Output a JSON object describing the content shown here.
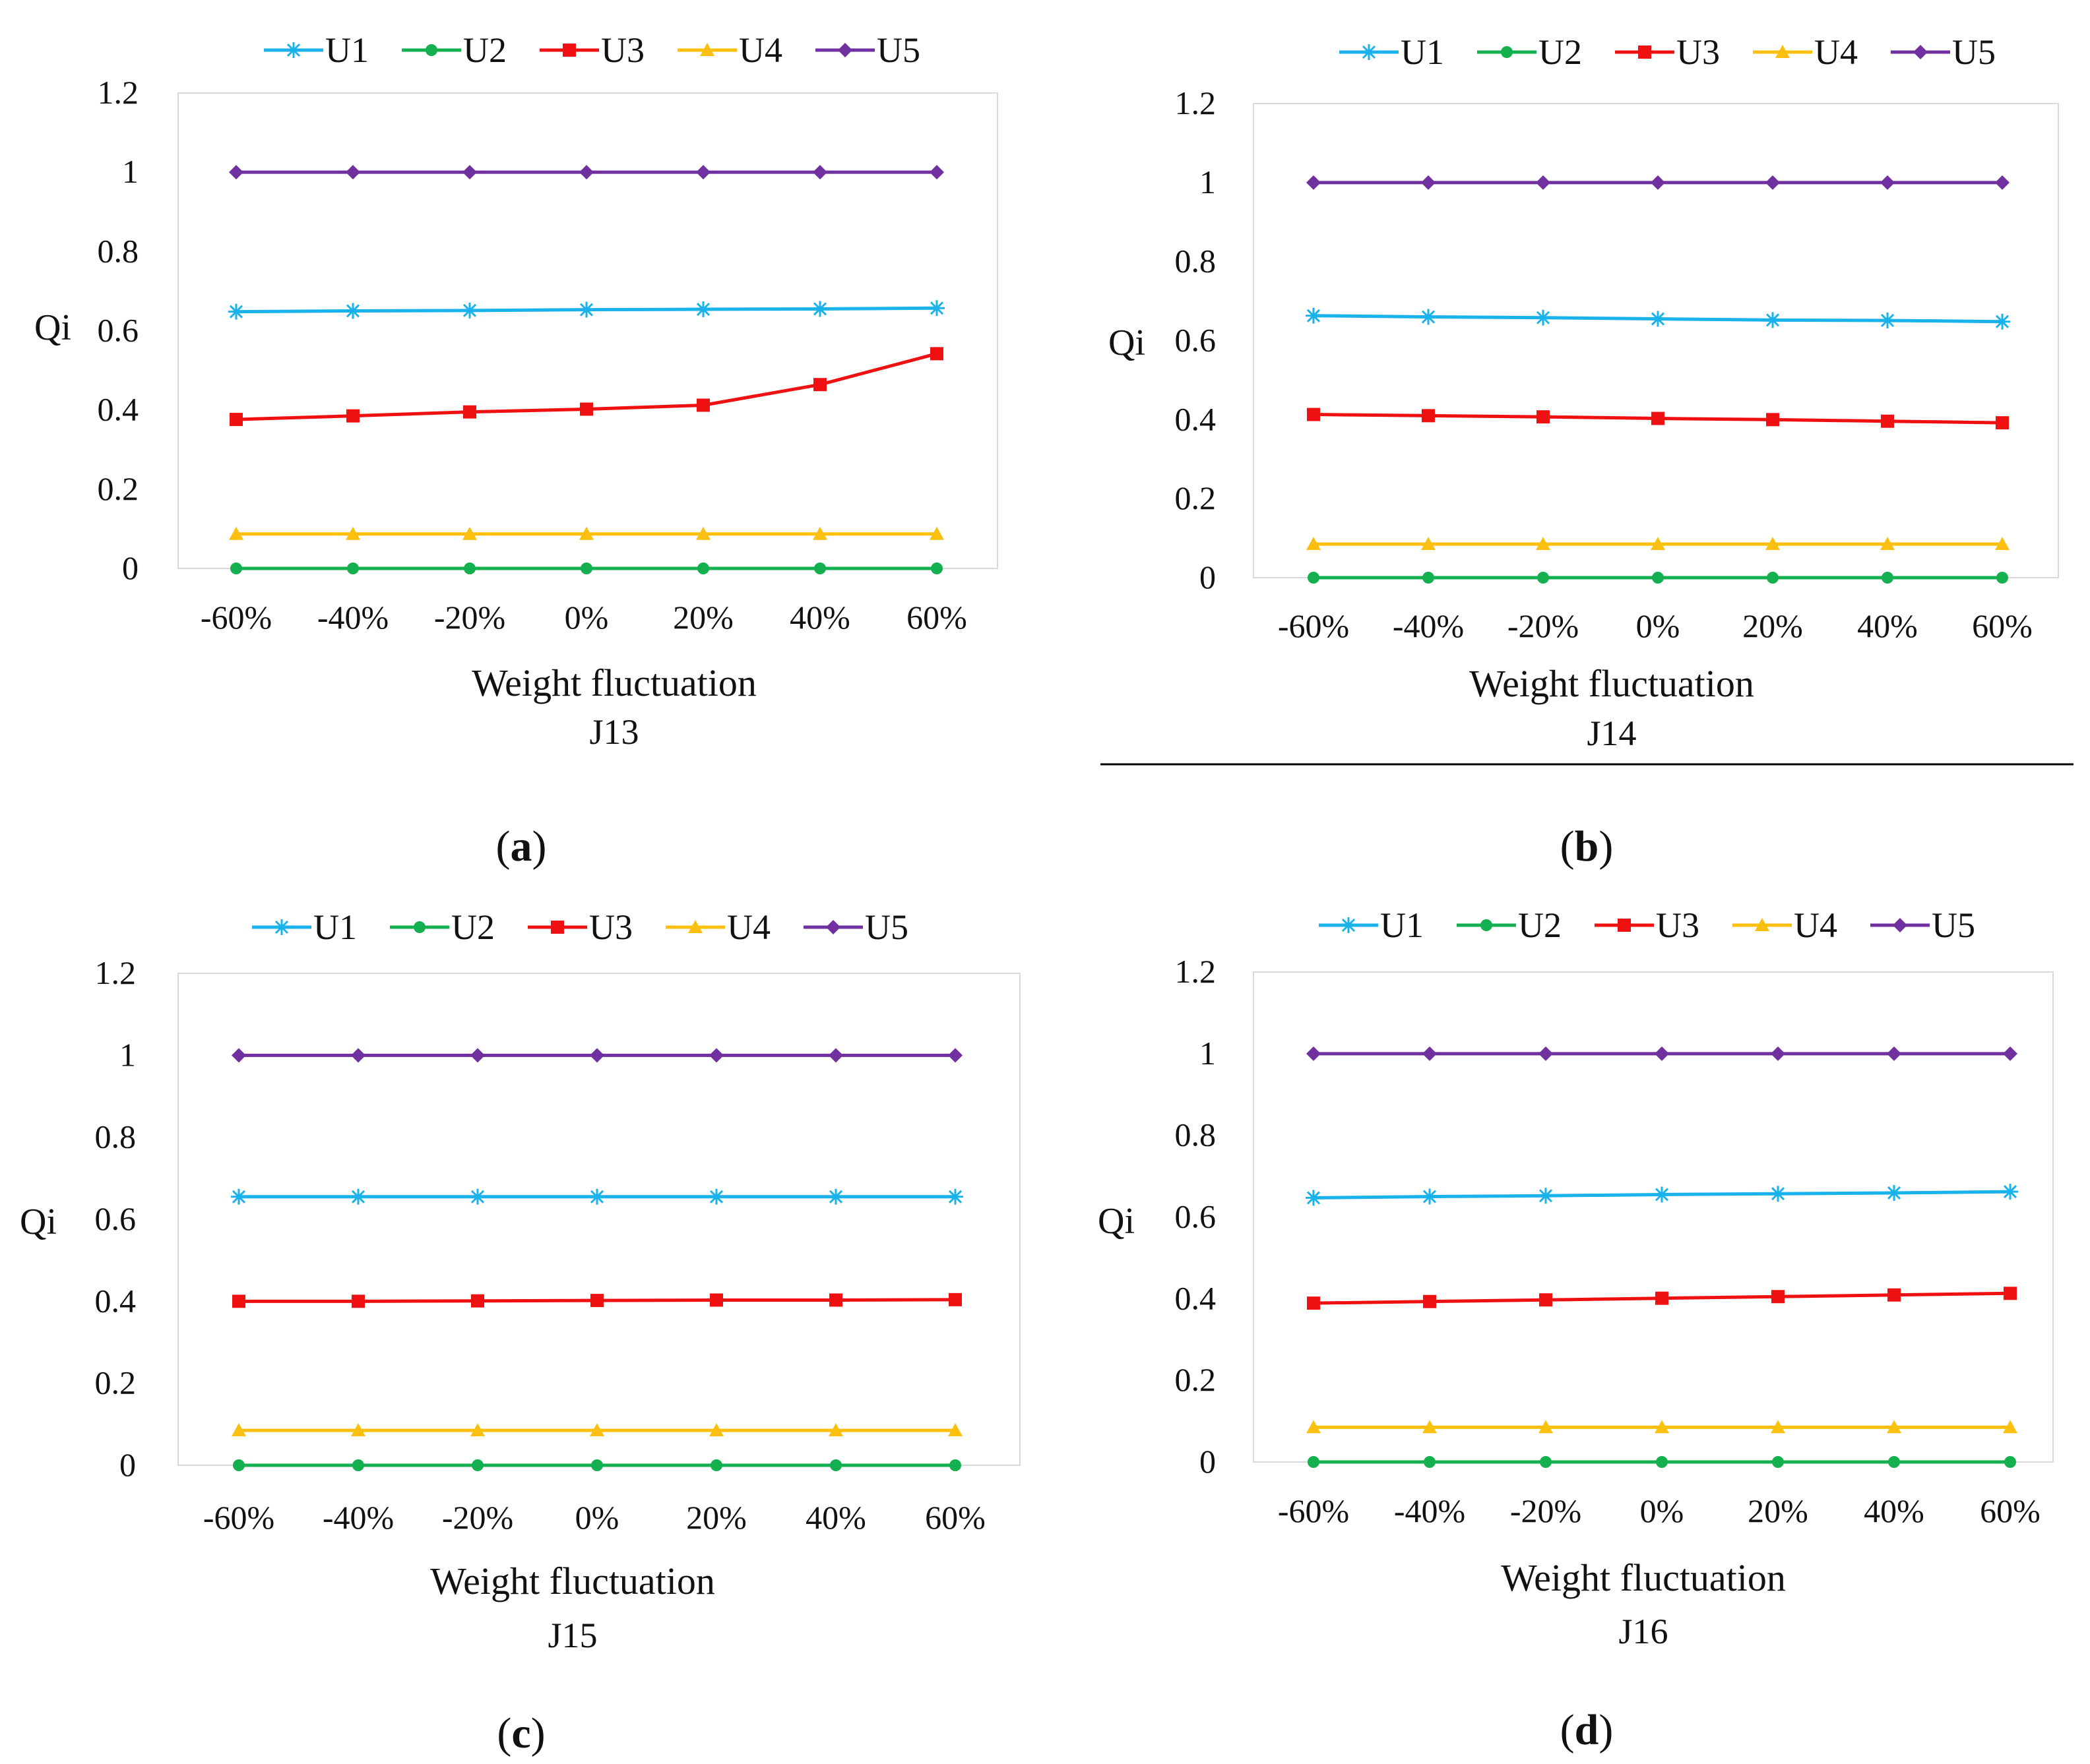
{
  "colors": {
    "U1": "#1ab2ea",
    "U2": "#14b050",
    "U3": "#ef1111",
    "U4": "#fbbf0f",
    "U5": "#7030a0",
    "frame": "#d9d9d9",
    "text": "#111111"
  },
  "legend_markers": {
    "U1": "asterisk",
    "U2": "circle",
    "U3": "square",
    "U4": "triangle",
    "U5": "diamond"
  },
  "chart_data": [
    {
      "type": "line",
      "panel": "(a)",
      "panel_letter": "a",
      "title": "J13",
      "xlabel": "Weight fluctuation",
      "ylabel": "Qi",
      "categories": [
        "-60%",
        "-40%",
        "-20%",
        "0%",
        "20%",
        "40%",
        "60%"
      ],
      "y_ticks": [
        "0",
        "0.2",
        "0.4",
        "0.6",
        "0.8",
        "1",
        "1.2"
      ],
      "ylim": [
        0,
        1.2
      ],
      "legend_position": "top",
      "series": [
        {
          "name": "U1",
          "values": [
            0.648,
            0.65,
            0.651,
            0.653,
            0.654,
            0.655,
            0.657
          ]
        },
        {
          "name": "U2",
          "values": [
            0,
            0,
            0,
            0,
            0,
            0,
            0
          ]
        },
        {
          "name": "U3",
          "values": [
            0.376,
            0.385,
            0.395,
            0.402,
            0.412,
            0.464,
            0.542
          ]
        },
        {
          "name": "U4",
          "values": [
            0.087,
            0.087,
            0.087,
            0.087,
            0.087,
            0.087,
            0.087
          ]
        },
        {
          "name": "U5",
          "values": [
            1,
            1,
            1,
            1,
            1,
            1,
            1
          ]
        }
      ]
    },
    {
      "type": "line",
      "panel": "(b)",
      "panel_letter": "b",
      "title": "J14",
      "xlabel": "Weight fluctuation",
      "ylabel": "Qi",
      "categories": [
        "-60%",
        "-40%",
        "-20%",
        "0%",
        "20%",
        "40%",
        "60%"
      ],
      "y_ticks": [
        "0",
        "0.2",
        "0.4",
        "0.6",
        "0.8",
        "1",
        "1.2"
      ],
      "ylim": [
        0,
        1.2
      ],
      "legend_position": "top",
      "series": [
        {
          "name": "U1",
          "values": [
            0.663,
            0.66,
            0.658,
            0.655,
            0.652,
            0.651,
            0.648
          ]
        },
        {
          "name": "U2",
          "values": [
            0,
            0,
            0,
            0,
            0,
            0,
            0
          ]
        },
        {
          "name": "U3",
          "values": [
            0.413,
            0.41,
            0.407,
            0.403,
            0.4,
            0.396,
            0.392
          ]
        },
        {
          "name": "U4",
          "values": [
            0.085,
            0.085,
            0.085,
            0.085,
            0.085,
            0.085,
            0.085
          ]
        },
        {
          "name": "U5",
          "values": [
            1,
            1,
            1,
            1,
            1,
            1,
            1
          ]
        }
      ]
    },
    {
      "type": "line",
      "panel": "(c)",
      "panel_letter": "c",
      "title": "J15",
      "xlabel": "Weight fluctuation",
      "ylabel": "Qi",
      "categories": [
        "-60%",
        "-40%",
        "-20%",
        "0%",
        "20%",
        "40%",
        "60%"
      ],
      "y_ticks": [
        "0",
        "0.2",
        "0.4",
        "0.6",
        "0.8",
        "1",
        "1.2"
      ],
      "ylim": [
        0,
        1.2
      ],
      "legend_position": "top",
      "series": [
        {
          "name": "U1",
          "values": [
            0.655,
            0.655,
            0.655,
            0.655,
            0.655,
            0.655,
            0.655
          ]
        },
        {
          "name": "U2",
          "values": [
            0,
            0,
            0,
            0,
            0,
            0,
            0
          ]
        },
        {
          "name": "U3",
          "values": [
            0.4,
            0.4,
            0.401,
            0.402,
            0.403,
            0.403,
            0.404
          ]
        },
        {
          "name": "U4",
          "values": [
            0.085,
            0.085,
            0.085,
            0.085,
            0.085,
            0.085,
            0.085
          ]
        },
        {
          "name": "U5",
          "values": [
            1,
            1,
            1,
            1,
            1,
            1,
            1
          ]
        }
      ]
    },
    {
      "type": "line",
      "panel": "(d)",
      "panel_letter": "d",
      "title": "J16",
      "xlabel": "Weight fluctuation",
      "ylabel": "Qi",
      "categories": [
        "-60%",
        "-40%",
        "-20%",
        "0%",
        "20%",
        "40%",
        "60%"
      ],
      "y_ticks": [
        "0",
        "0.2",
        "0.4",
        "0.6",
        "0.8",
        "1",
        "1.2"
      ],
      "ylim": [
        0,
        1.2
      ],
      "legend_position": "top",
      "series": [
        {
          "name": "U1",
          "values": [
            0.647,
            0.65,
            0.652,
            0.655,
            0.657,
            0.659,
            0.662
          ]
        },
        {
          "name": "U2",
          "values": [
            0,
            0,
            0,
            0,
            0,
            0,
            0
          ]
        },
        {
          "name": "U3",
          "values": [
            0.389,
            0.393,
            0.397,
            0.401,
            0.405,
            0.409,
            0.413
          ]
        },
        {
          "name": "U4",
          "values": [
            0.085,
            0.085,
            0.085,
            0.085,
            0.085,
            0.085,
            0.085
          ]
        },
        {
          "name": "U5",
          "values": [
            1,
            1,
            1,
            1,
            1,
            1,
            1
          ]
        }
      ]
    }
  ]
}
